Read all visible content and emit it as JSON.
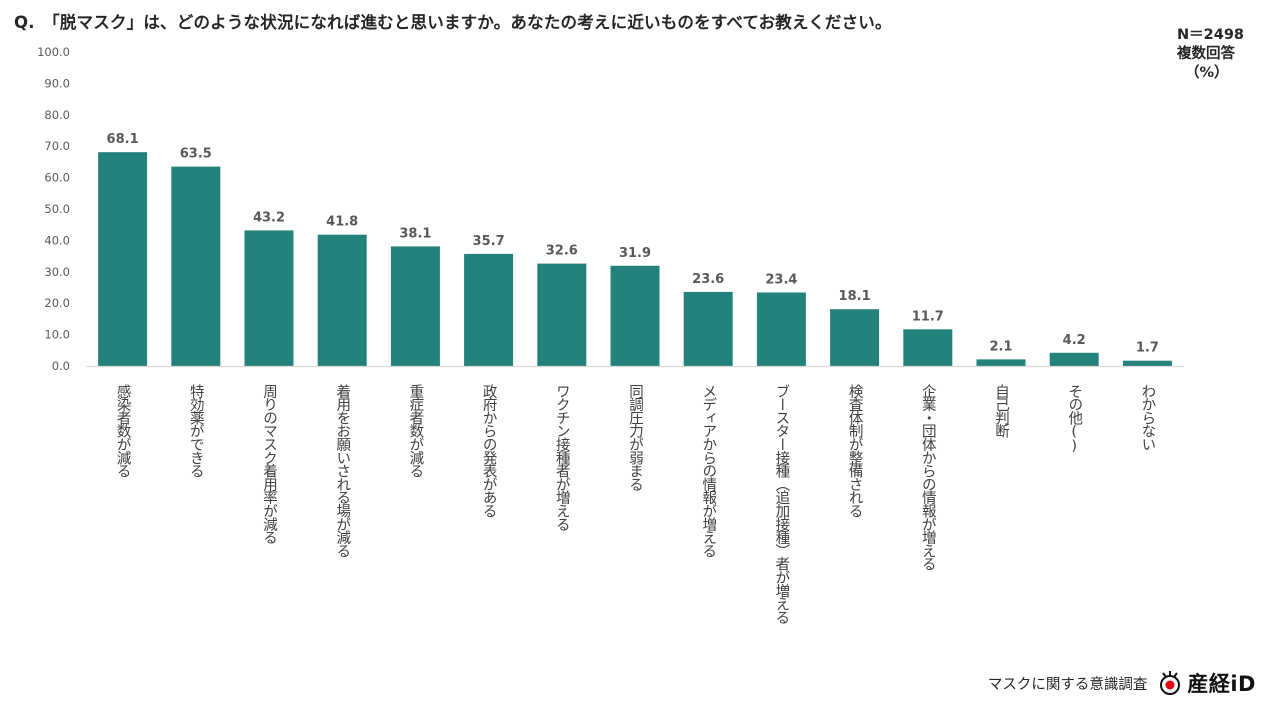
{
  "header": {
    "title": "Q.　「脱マスク」は、どのような状況になれば進むと思いますか。あなたの考えに近いものをすべてお教えください。",
    "n_label": "N＝2498",
    "answer_type": "複数回答",
    "unit": "（%）"
  },
  "footer": {
    "survey_name": "マスクに関する意識調査",
    "brand_name": "産経iD"
  },
  "colors": {
    "bar": "#24827C",
    "axis": "#D9D9D9",
    "tick": "#595959",
    "label": "#404040"
  },
  "chart_data": {
    "type": "bar",
    "title": "「脱マスク」は、どのような状況になれば進むと思いますか。あなたの考えに近いものをすべてお教えください。",
    "categories": [
      "感染者数が減る",
      "特効薬ができる",
      "周りのマスク着用率が減る",
      "着用をお願いされる場が減る",
      "重症者数が減る",
      "政府からの発表がある",
      "ワクチン接種者が増える",
      "同調圧力が弱まる",
      "メディアからの情報が増える",
      "ブースター接種（追加接種）者が増える",
      "検査体制が整備される",
      "企業・団体からの情報が増える",
      "自己判断",
      "その他()",
      "わからない"
    ],
    "values": [
      68.1,
      63.5,
      43.2,
      41.8,
      38.1,
      35.7,
      32.6,
      31.9,
      23.6,
      23.4,
      18.1,
      11.7,
      2.1,
      4.2,
      1.7
    ],
    "value_labels": [
      "68.1",
      "63.5",
      "43.2",
      "41.8",
      "38.1",
      "35.7",
      "32.6",
      "31.9",
      "23.6",
      "23.4",
      "18.1",
      "11.7",
      "2.1",
      "4.2",
      "1.7"
    ],
    "ylim": [
      0,
      100
    ],
    "yticks": [
      "0.0",
      "10.0",
      "20.0",
      "30.0",
      "40.0",
      "50.0",
      "60.0",
      "70.0",
      "80.0",
      "90.0",
      "100.0"
    ],
    "xlabel": "",
    "ylabel": "",
    "grid": false,
    "legend": "none"
  }
}
